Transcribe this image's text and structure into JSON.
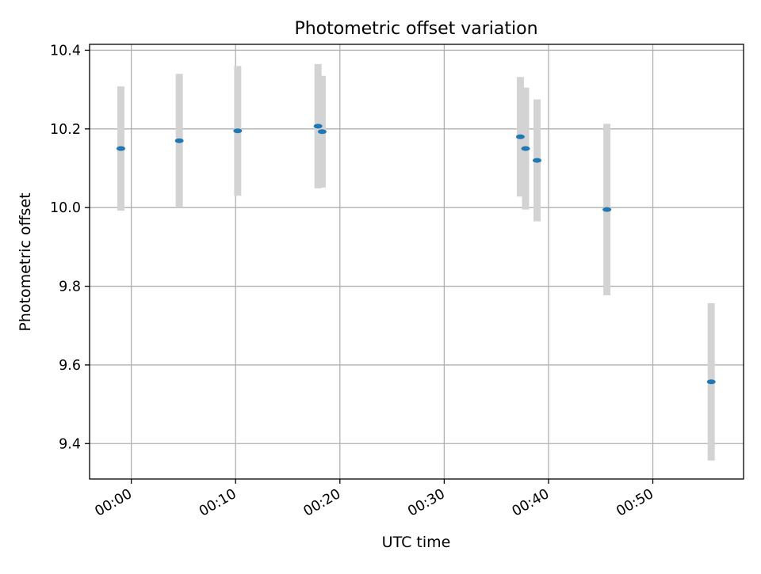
{
  "chart_data": {
    "type": "scatter",
    "title": "Photometric offset variation",
    "xlabel": "UTC time",
    "ylabel": "Photometric offset",
    "x_unit": "minutes after 00:00 UTC",
    "xlim": [
      -4.0,
      58.7
    ],
    "ylim": [
      9.31,
      10.415
    ],
    "x_ticks": [
      {
        "value": 0,
        "label": "00:00"
      },
      {
        "value": 10,
        "label": "00:10"
      },
      {
        "value": 20,
        "label": "00:20"
      },
      {
        "value": 30,
        "label": "00:30"
      },
      {
        "value": 40,
        "label": "00:40"
      },
      {
        "value": 50,
        "label": "00:50"
      }
    ],
    "y_ticks": [
      {
        "value": 9.4,
        "label": "9.4"
      },
      {
        "value": 9.6,
        "label": "9.6"
      },
      {
        "value": 9.8,
        "label": "9.8"
      },
      {
        "value": 10.0,
        "label": "10.0"
      },
      {
        "value": 10.2,
        "label": "10.2"
      },
      {
        "value": 10.4,
        "label": "10.4"
      }
    ],
    "grid": true,
    "series": [
      {
        "color": "#1f77b4",
        "errorbar_color": "#d3d3d3",
        "points": [
          {
            "x": -1.0,
            "y": 10.15,
            "err": 0.158
          },
          {
            "x": 4.6,
            "y": 10.17,
            "err": 0.17
          },
          {
            "x": 10.2,
            "y": 10.195,
            "err": 0.165
          },
          {
            "x": 17.9,
            "y": 10.207,
            "err": 0.158
          },
          {
            "x": 18.3,
            "y": 10.193,
            "err": 0.142
          },
          {
            "x": 37.3,
            "y": 10.18,
            "err": 0.152
          },
          {
            "x": 37.8,
            "y": 10.15,
            "err": 0.155
          },
          {
            "x": 38.9,
            "y": 10.12,
            "err": 0.155
          },
          {
            "x": 45.6,
            "y": 9.995,
            "err": 0.218
          },
          {
            "x": 55.6,
            "y": 9.557,
            "err": 0.2
          }
        ]
      }
    ]
  }
}
